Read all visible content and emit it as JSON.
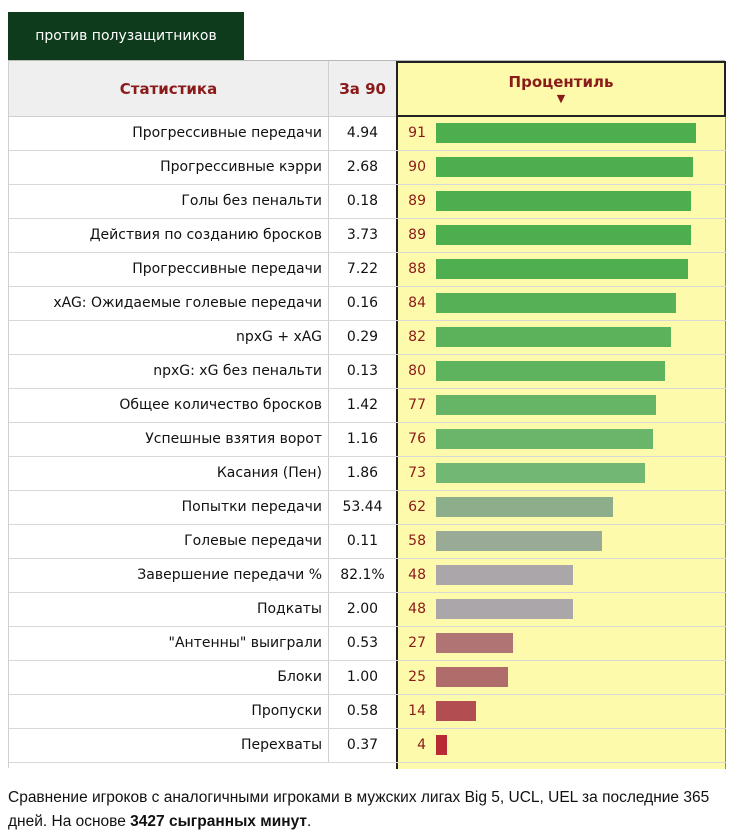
{
  "tab": {
    "label": "против полузащитников"
  },
  "header": {
    "stat": "Статистика",
    "per90": "За 90",
    "percentile": "Процентиль",
    "sort_arrow": "▼"
  },
  "chart_data": {
    "type": "bar",
    "orientation": "horizontal",
    "xlim": [
      0,
      100
    ],
    "rows": [
      {
        "stat": "Прогрессивные передачи",
        "per90": "4.94",
        "percentile": 91,
        "color": "#4cae4c"
      },
      {
        "stat": "Прогрессивные кэрри",
        "per90": "2.68",
        "percentile": 90,
        "color": "#4cae4c"
      },
      {
        "stat": "Голы без пенальти",
        "per90": "0.18",
        "percentile": 89,
        "color": "#4cae4c"
      },
      {
        "stat": "Действия по созданию бросков",
        "per90": "3.73",
        "percentile": 89,
        "color": "#4cae4c"
      },
      {
        "stat": "Прогрессивные передачи",
        "per90": "7.22",
        "percentile": 88,
        "color": "#4fae4f"
      },
      {
        "stat": "xAG: Ожидаемые голевые передачи",
        "per90": "0.16",
        "percentile": 84,
        "color": "#56b056"
      },
      {
        "stat": "npxG + xAG",
        "per90": "0.29",
        "percentile": 82,
        "color": "#5bb25b"
      },
      {
        "stat": "npxG: xG без пенальти",
        "per90": "0.13",
        "percentile": 80,
        "color": "#5eb35e"
      },
      {
        "stat": "Общее количество бросков",
        "per90": "1.42",
        "percentile": 77,
        "color": "#66b466"
      },
      {
        "stat": "Успешные взятия ворот",
        "per90": "1.16",
        "percentile": 76,
        "color": "#69b569"
      },
      {
        "stat": "Касания (Пен)",
        "per90": "1.86",
        "percentile": 73,
        "color": "#72b772"
      },
      {
        "stat": "Попытки передачи",
        "per90": "53.44",
        "percentile": 62,
        "color": "#8cae8a"
      },
      {
        "stat": "Голевые передачи",
        "per90": "0.11",
        "percentile": 58,
        "color": "#99ab96"
      },
      {
        "stat": "Завершение передачи %",
        "per90": "82.1%",
        "percentile": 48,
        "color": "#aba6aa"
      },
      {
        "stat": "Подкаты",
        "per90": "2.00",
        "percentile": 48,
        "color": "#aba6aa"
      },
      {
        "stat": "\"Антенны\" выиграли",
        "per90": "0.53",
        "percentile": 27,
        "color": "#b07474"
      },
      {
        "stat": "Блоки",
        "per90": "1.00",
        "percentile": 25,
        "color": "#b06b6b"
      },
      {
        "stat": "Пропуски",
        "per90": "0.58",
        "percentile": 14,
        "color": "#b24d52"
      },
      {
        "stat": "Перехваты",
        "per90": "0.37",
        "percentile": 4,
        "color": "#b82b35"
      }
    ]
  },
  "caption": {
    "text": "Сравнение игроков с аналогичными игроками в мужских лигах Big 5, UCL, UEL за последние 365 дней. На основе ",
    "bold": "3427 сыгранных минут",
    "end": "."
  }
}
